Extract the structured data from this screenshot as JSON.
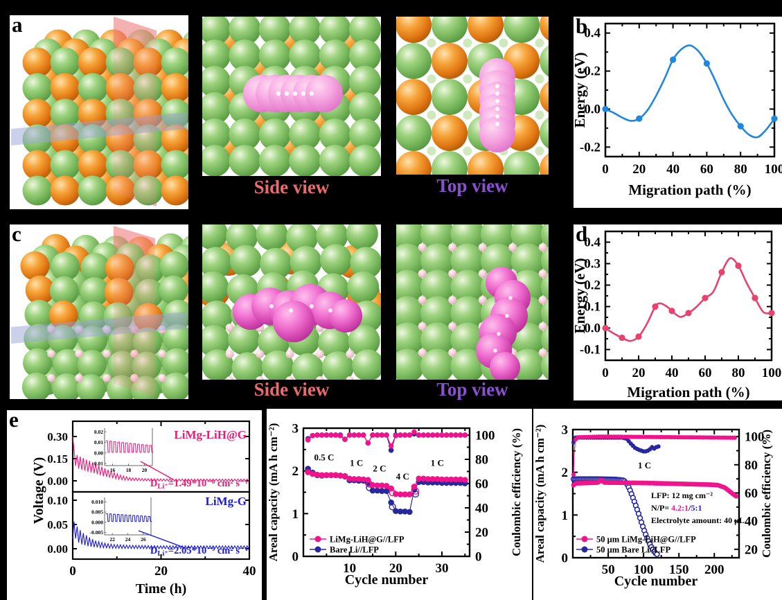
{
  "panels": {
    "a": {
      "letter": "a",
      "side_caption": "Side view",
      "top_caption": "Top view"
    },
    "b": {
      "letter": "b"
    },
    "c": {
      "letter": "c",
      "side_caption": "Side view",
      "top_caption": "Top view"
    },
    "d": {
      "letter": "d"
    },
    "e": {
      "letter": "e"
    }
  },
  "colors": {
    "side_view": "#e96b6b",
    "top_view": "#8b50d2",
    "blue_line": "#1e87e0",
    "pink_line": "#e8436e",
    "deep_pink": "#f0148c",
    "navy": "#28289e",
    "e_pink": "#f01878",
    "e_blue": "#1a1ad8",
    "np_pink": "#f0148c",
    "np_blue": "#2020c0",
    "green_sphere": "#7cc05e",
    "orange_sphere": "#e97c12",
    "magenta_blob": "#ee5ec6"
  },
  "chart_data": [
    {
      "id": "b",
      "type": "line",
      "xlabel": "Migration path (%)",
      "ylabel": "Energy (eV)",
      "xlim": [
        0,
        100
      ],
      "ylim": [
        -0.25,
        0.45
      ],
      "xticks": [
        0,
        20,
        40,
        60,
        80,
        100
      ],
      "yticks": [
        -0.2,
        0.0,
        0.2,
        0.4
      ],
      "ytick_labels": [
        "-0.2",
        "0.0",
        "0.2",
        "0.4"
      ],
      "color": "#1e87e0",
      "points": {
        "x": [
          0,
          20,
          40,
          60,
          80,
          100
        ],
        "y": [
          0.0,
          -0.05,
          0.26,
          0.24,
          -0.09,
          -0.05
        ]
      },
      "curve": {
        "x": [
          0,
          5,
          10,
          15,
          20,
          25,
          30,
          35,
          40,
          45,
          50,
          55,
          60,
          65,
          70,
          75,
          80,
          85,
          90,
          95,
          100
        ],
        "y": [
          0,
          -0.02,
          -0.045,
          -0.062,
          -0.05,
          -0.005,
          0.07,
          0.16,
          0.26,
          0.315,
          0.335,
          0.305,
          0.24,
          0.15,
          0.05,
          -0.03,
          -0.09,
          -0.135,
          -0.148,
          -0.11,
          -0.05
        ]
      }
    },
    {
      "id": "d",
      "type": "line",
      "xlabel": "Migration path (%)",
      "ylabel": "Energy (eV)",
      "xlim": [
        0,
        100
      ],
      "ylim": [
        -0.15,
        0.45
      ],
      "xticks": [
        0,
        20,
        40,
        60,
        80,
        100
      ],
      "yticks": [
        -0.1,
        0.0,
        0.1,
        0.2,
        0.3,
        0.4
      ],
      "ytick_labels": [
        "-0.1",
        "0.0",
        "0.1",
        "0.2",
        "0.3",
        "0.4"
      ],
      "color": "#e8436e",
      "points": {
        "x": [
          0,
          10,
          20,
          30,
          40,
          50,
          60,
          70,
          80,
          90,
          100
        ],
        "y": [
          0.0,
          -0.045,
          -0.04,
          0.1,
          0.08,
          0.07,
          0.14,
          0.26,
          0.29,
          0.14,
          0.07
        ]
      },
      "curve": {
        "x": [
          0,
          5,
          10,
          15,
          20,
          25,
          30,
          33,
          37,
          40,
          45,
          50,
          55,
          60,
          65,
          70,
          75,
          80,
          85,
          90,
          95,
          100
        ],
        "y": [
          0,
          -0.025,
          -0.045,
          -0.06,
          -0.04,
          0.02,
          0.1,
          0.115,
          0.1,
          0.08,
          0.052,
          0.07,
          0.1,
          0.14,
          0.17,
          0.26,
          0.325,
          0.29,
          0.21,
          0.14,
          0.075,
          0.07
        ]
      }
    },
    {
      "id": "e",
      "type": "line",
      "xlabel": "Time (h)",
      "ylabel": "Voltage (V)",
      "xlim": [
        0,
        40
      ],
      "xticks": [
        0,
        20,
        40
      ],
      "top": {
        "label": "LiMg-LiH@G",
        "color": "#f01878",
        "yticks": [
          0.0,
          0.15,
          0.3
        ],
        "ytick_labels": [
          "0.00",
          "0.15",
          "0.30"
        ],
        "diffusion": {
          "prefix": "D",
          "sub": "Li⁺",
          "value": "=1.49*10⁻⁸ cm² s⁻¹"
        },
        "envelope": [
          [
            0,
            0.3,
            0
          ],
          [
            0.2,
            0.17,
            0.05
          ],
          [
            1,
            0.13,
            0.045
          ],
          [
            3,
            0.105,
            0.04
          ],
          [
            5,
            0.085,
            0.035
          ],
          [
            7,
            0.06,
            0.03
          ],
          [
            9,
            0.04,
            0.022
          ],
          [
            11,
            0.022,
            0.015
          ],
          [
            13,
            0.012,
            0.01
          ],
          [
            16,
            0.008,
            0.008
          ],
          [
            20,
            0.006,
            0.007
          ],
          [
            30,
            0.005,
            0.007
          ],
          [
            40,
            0.005,
            0.007
          ]
        ],
        "inset": {
          "xlim": [
            15,
            21
          ],
          "xticks": [
            16,
            18,
            20
          ],
          "yticks": [
            0.02,
            0.01,
            0.0,
            -0.01
          ],
          "ytick_labels": [
            "0.02",
            "0.01",
            "0.00",
            "-0.01"
          ],
          "ylim": [
            -0.012,
            0.0235
          ],
          "wave_high": 0.0115,
          "wave_decay": 0.0004,
          "wave_low": 0.0006
        }
      },
      "bottom": {
        "label": "LiMg-G",
        "color": "#1a1ad8",
        "yticks": [
          0.0,
          0.05,
          0.1
        ],
        "ytick_labels": [
          "0.00",
          "0.05",
          "0.10"
        ],
        "diffusion": {
          "prefix": "D",
          "sub": "Li⁺",
          "value": "=2.05*10⁻⁹ cm² s⁻¹"
        },
        "envelope": [
          [
            0,
            0.02,
            0
          ],
          [
            0.3,
            0.042,
            0.014
          ],
          [
            1,
            0.03,
            0.016
          ],
          [
            2,
            0.022,
            0.013
          ],
          [
            3.5,
            0.015,
            0.01
          ],
          [
            5,
            0.01,
            0.007
          ],
          [
            7,
            0.007,
            0.005
          ],
          [
            9,
            0.005,
            0.004
          ],
          [
            12,
            0.004,
            0.0035
          ],
          [
            20,
            0.003,
            0.003
          ],
          [
            40,
            0.003,
            0.003
          ]
        ],
        "inset": {
          "xlim": [
            21,
            27
          ],
          "xticks": [
            22,
            24,
            26
          ],
          "yticks": [
            0.01,
            0.005,
            0.0,
            -0.005
          ],
          "ytick_labels": [
            "0.010",
            "0.005",
            "0.000",
            "-0.005"
          ],
          "ylim": [
            -0.0062,
            0.0122
          ],
          "wave_high": 0.0042,
          "wave_decay": 0.00012,
          "wave_low": 0.0004
        }
      }
    },
    {
      "id": "rate",
      "type": "scatter",
      "xlabel": "Cycle number",
      "ylabel_left": "Areal capacity (mA h cm⁻²)",
      "ylabel_right": "Coulombic efficiency (%)",
      "xlim": [
        0,
        36
      ],
      "xticks": [
        10,
        20,
        30
      ],
      "ylim_left": [
        0,
        3
      ],
      "yticks_left": [
        0,
        1,
        2,
        3
      ],
      "ylim_right": [
        0,
        105.7
      ],
      "yticks_right": [
        0,
        20,
        40,
        60,
        80,
        100
      ],
      "rate_labels": [
        {
          "text": "0.5 C",
          "x": 4.5,
          "y": 2.25
        },
        {
          "text": "1 C",
          "x": 11.5,
          "y": 2.12
        },
        {
          "text": "2 C",
          "x": 16.5,
          "y": 1.99
        },
        {
          "text": "4 C",
          "x": 21.5,
          "y": 1.8
        },
        {
          "text": "1 C",
          "x": 29,
          "y": 2.12
        }
      ],
      "series": [
        {
          "name": "LiMg-LiH@G//LFP",
          "color": "#f0148c",
          "capacity": [
            1.97,
            1.93,
            1.91,
            1.9,
            1.9,
            1.9,
            1.9,
            1.89,
            1.88,
            1.82,
            1.81,
            1.81,
            1.8,
            1.79,
            1.67,
            1.66,
            1.66,
            1.65,
            1.59,
            1.46,
            1.45,
            1.45,
            1.45,
            1.63,
            1.82,
            1.82,
            1.81,
            1.81,
            1.81,
            1.8,
            1.8,
            1.8,
            1.8,
            1.8,
            1.79
          ],
          "efficiency": [
            96,
            99.5,
            100,
            100,
            100,
            100,
            100,
            99.5,
            96.5,
            100,
            100,
            100,
            100,
            93.5,
            100,
            100,
            100,
            100,
            91,
            99.5,
            100,
            100,
            100,
            102.5,
            100,
            100,
            100,
            100,
            100,
            100,
            100,
            100,
            100,
            100,
            100
          ]
        },
        {
          "name": "Bare Li//LFP",
          "color": "#28289e",
          "capacity": [
            2.05,
            1.96,
            1.9,
            1.89,
            1.9,
            1.9,
            1.9,
            1.89,
            1.87,
            1.78,
            1.78,
            1.77,
            1.77,
            1.71,
            1.54,
            1.54,
            1.53,
            1.53,
            1.26,
            1.06,
            1.05,
            1.05,
            1.04,
            1.56,
            1.74,
            1.74,
            1.73,
            1.73,
            1.73,
            1.72,
            1.72,
            1.72,
            1.72,
            1.72,
            1.71
          ],
          "efficiency": [
            97,
            99.5,
            100,
            100,
            100,
            100,
            100,
            100,
            96.5,
            100,
            100,
            100,
            100,
            93.5,
            100,
            100,
            100,
            100,
            87.5,
            100,
            100,
            100,
            100,
            101,
            100,
            100,
            100,
            100,
            100,
            100,
            100,
            100,
            100,
            100,
            100
          ]
        }
      ]
    },
    {
      "id": "cycling",
      "type": "scatter",
      "xlabel": "Cycle number",
      "ylabel_left": "Areal capacity (mA h cm⁻²)",
      "ylabel_right": "Coulombic efficiency (%)",
      "xlim": [
        0,
        235
      ],
      "xticks": [
        50,
        100,
        150,
        200
      ],
      "ylim_left": [
        0,
        3
      ],
      "yticks_left": [
        0,
        1,
        2,
        3
      ],
      "ylim_right": [
        14,
        105
      ],
      "yticks_right": [
        20,
        40,
        60,
        80,
        100
      ],
      "rate_annotation": "1 C",
      "annotations": {
        "line1": "LFP: 12 mg cm⁻²",
        "line2_prefix": "N/P= ",
        "line2_pink": "4.2:1",
        "line2_sep": "/",
        "line2_blue": "5:1",
        "line3": "Electrolyte amount: 40 μL"
      },
      "series": [
        {
          "name": "50 μm LiMg-LiH@G//LFP",
          "color": "#f0148c",
          "capacity_bp": [
            [
              1,
              1.7
            ],
            [
              4,
              1.74
            ],
            [
              36,
              1.76
            ],
            [
              40,
              1.83
            ],
            [
              44,
              1.76
            ],
            [
              100,
              1.75
            ],
            [
              150,
              1.73
            ],
            [
              195,
              1.71
            ],
            [
              205,
              1.7
            ],
            [
              215,
              1.64
            ],
            [
              222,
              1.55
            ],
            [
              228,
              1.47
            ],
            [
              231,
              1.44
            ]
          ],
          "efficiency_bp": [
            [
              1,
              73
            ],
            [
              2,
              88
            ],
            [
              3,
              95
            ],
            [
              4,
              98
            ],
            [
              6,
              99.5
            ],
            [
              40,
              100
            ],
            [
              230,
              99.2
            ]
          ]
        },
        {
          "name": "50 μm Bare Li//LFP",
          "color": "#28289e",
          "capacity_bp": [
            [
              1,
              1.84
            ],
            [
              30,
              1.84
            ],
            [
              60,
              1.83
            ],
            [
              72,
              1.81
            ],
            [
              76,
              1.74
            ],
            [
              80,
              1.62
            ],
            [
              84,
              1.45
            ],
            [
              88,
              1.27
            ],
            [
              92,
              1.08
            ],
            [
              96,
              0.88
            ],
            [
              100,
              0.68
            ],
            [
              104,
              0.5
            ],
            [
              108,
              0.35
            ],
            [
              112,
              0.22
            ],
            [
              116,
              0.12
            ],
            [
              120,
              0.07
            ]
          ],
          "efficiency_bp": [
            [
              1,
              96
            ],
            [
              2,
              98.5
            ],
            [
              4,
              99.3
            ],
            [
              70,
              99.3
            ],
            [
              76,
              98.5
            ],
            [
              82,
              95
            ],
            [
              88,
              92
            ],
            [
              94,
              90.5
            ],
            [
              100,
              89.5
            ],
            [
              104,
              89.5
            ],
            [
              108,
              90.5
            ],
            [
              112,
              92.5
            ],
            [
              115,
              91.5
            ],
            [
              118,
              92.5
            ],
            [
              121,
              93
            ]
          ]
        }
      ]
    }
  ]
}
